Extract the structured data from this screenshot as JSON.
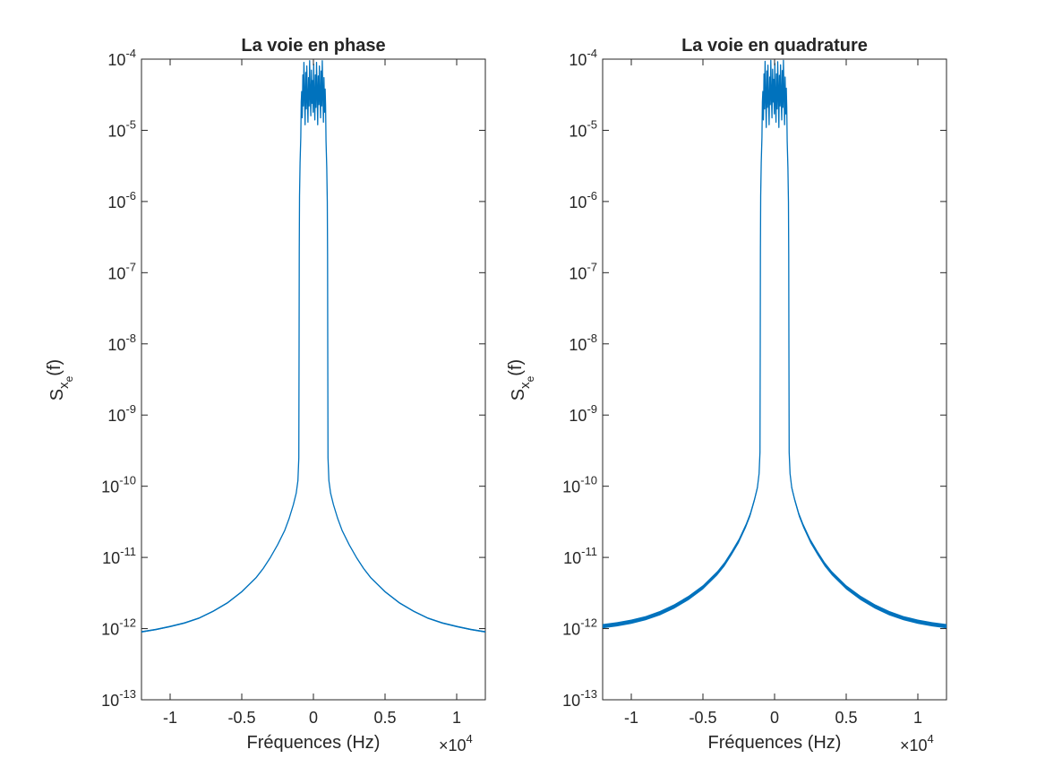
{
  "chart_data": [
    {
      "type": "line",
      "title": "La voie en phase",
      "xlabel": "Fréquences (Hz)",
      "ylabel": "S_{x_e}(f)",
      "ylabel_parts": {
        "main": "S",
        "sub1": "x",
        "sub2": "e",
        "arg": "(f)"
      },
      "x_multiplier": "×10",
      "x_multiplier_exp": "4",
      "xlim": [
        -12000,
        12000
      ],
      "ylim": [
        1e-13,
        0.0001
      ],
      "yscale": "log",
      "grid": false,
      "legend": "none",
      "color": "#0072BD",
      "xticks": [
        -10000,
        -5000,
        0,
        5000,
        10000
      ],
      "xtick_labels": [
        "-1",
        "-0.5",
        "0",
        "0.5",
        "1"
      ],
      "yticks": [
        1e-13,
        1e-12,
        1e-11,
        1e-10,
        1e-09,
        1e-08,
        1e-07,
        1e-06,
        1e-05,
        0.0001
      ],
      "ytick_base": "10",
      "ytick_exps": [
        "-13",
        "-12",
        "-11",
        "-10",
        "-9",
        "-8",
        "-7",
        "-6",
        "-5",
        "-4"
      ],
      "series": [
        {
          "band_width_decades": 0.02,
          "points": [
            [
              -12000,
              9e-13
            ],
            [
              -11000,
              9.7e-13
            ],
            [
              -10000,
              1.07e-12
            ],
            [
              -9000,
              1.2e-12
            ],
            [
              -8000,
              1.4e-12
            ],
            [
              -7000,
              1.75e-12
            ],
            [
              -6000,
              2.3e-12
            ],
            [
              -5000,
              3.3e-12
            ],
            [
              -4000,
              5.2e-12
            ],
            [
              -3500,
              7e-12
            ],
            [
              -3000,
              1e-11
            ],
            [
              -2500,
              1.5e-11
            ],
            [
              -2000,
              2.4e-11
            ],
            [
              -1700,
              3.5e-11
            ],
            [
              -1400,
              5.5e-11
            ],
            [
              -1200,
              8e-11
            ],
            [
              -1080,
              1.2e-10
            ],
            [
              -1020,
              2.5e-10
            ],
            [
              -1000,
              1e-08
            ],
            [
              -990,
              2e-07
            ],
            [
              -970,
              1.2e-06
            ],
            [
              -930,
              3.5e-06
            ],
            [
              -880,
              8e-06
            ],
            [
              -850,
              2.5e-05
            ],
            [
              -820,
              3.5e-05
            ],
            [
              -780,
              1.5e-05
            ],
            [
              -740,
              6e-05
            ],
            [
              -700,
              2.2e-05
            ],
            [
              -660,
              9e-05
            ],
            [
              -620,
              3e-05
            ],
            [
              -580,
              1.2e-05
            ],
            [
              -540,
              6.5e-05
            ],
            [
              -500,
              2e-05
            ],
            [
              -460,
              8e-05
            ],
            [
              -420,
              2.8e-05
            ],
            [
              -380,
              1.3e-05
            ],
            [
              -340,
              5.5e-05
            ],
            [
              -300,
              2.2e-05
            ],
            [
              -260,
              9.5e-05
            ],
            [
              -220,
              3e-05
            ],
            [
              -180,
              1.6e-05
            ],
            [
              -140,
              7e-05
            ],
            [
              -100,
              2.4e-05
            ],
            [
              -60,
              5e-05
            ],
            [
              -20,
              1.8e-05
            ],
            [
              20,
              8.5e-05
            ],
            [
              60,
              2.6e-05
            ],
            [
              100,
              1.4e-05
            ],
            [
              140,
              6e-05
            ],
            [
              180,
              2.1e-05
            ],
            [
              220,
              9e-05
            ],
            [
              260,
              3.2e-05
            ],
            [
              300,
              1.2e-05
            ],
            [
              340,
              5.8e-05
            ],
            [
              380,
              2.3e-05
            ],
            [
              420,
              8e-05
            ],
            [
              460,
              2.7e-05
            ],
            [
              500,
              1.5e-05
            ],
            [
              540,
              6.8e-05
            ],
            [
              580,
              2.2e-05
            ],
            [
              620,
              9.5e-05
            ],
            [
              660,
              3e-05
            ],
            [
              700,
              1.3e-05
            ],
            [
              740,
              5.5e-05
            ],
            [
              780,
              1.8e-05
            ],
            [
              820,
              3.8e-05
            ],
            [
              850,
              2.2e-05
            ],
            [
              880,
              7e-06
            ],
            [
              930,
              3e-06
            ],
            [
              970,
              1e-06
            ],
            [
              990,
              1.8e-07
            ],
            [
              1000,
              1e-08
            ],
            [
              1020,
              2.5e-10
            ],
            [
              1080,
              1.2e-10
            ],
            [
              1200,
              8e-11
            ],
            [
              1400,
              5.5e-11
            ],
            [
              1700,
              3.5e-11
            ],
            [
              2000,
              2.4e-11
            ],
            [
              2500,
              1.5e-11
            ],
            [
              3000,
              1e-11
            ],
            [
              3500,
              7e-12
            ],
            [
              4000,
              5.2e-12
            ],
            [
              5000,
              3.3e-12
            ],
            [
              6000,
              2.3e-12
            ],
            [
              7000,
              1.75e-12
            ],
            [
              8000,
              1.4e-12
            ],
            [
              9000,
              1.2e-12
            ],
            [
              10000,
              1.07e-12
            ],
            [
              11000,
              9.7e-13
            ],
            [
              12000,
              9e-13
            ]
          ]
        }
      ]
    },
    {
      "type": "line",
      "title": "La voie en quadrature",
      "xlabel": "Fréquences (Hz)",
      "ylabel": "S_{x_e}(f)",
      "ylabel_parts": {
        "main": "S",
        "sub1": "x",
        "sub2": "e",
        "arg": "(f)"
      },
      "x_multiplier": "×10",
      "x_multiplier_exp": "4",
      "xlim": [
        -12000,
        12000
      ],
      "ylim": [
        1e-13,
        0.0001
      ],
      "yscale": "log",
      "grid": false,
      "legend": "none",
      "color": "#0072BD",
      "xticks": [
        -10000,
        -5000,
        0,
        5000,
        10000
      ],
      "xtick_labels": [
        "-1",
        "-0.5",
        "0",
        "0.5",
        "1"
      ],
      "yticks": [
        1e-13,
        1e-12,
        1e-11,
        1e-10,
        1e-09,
        1e-08,
        1e-07,
        1e-06,
        1e-05,
        0.0001
      ],
      "ytick_base": "10",
      "ytick_exps": [
        "-13",
        "-12",
        "-11",
        "-10",
        "-9",
        "-8",
        "-7",
        "-6",
        "-5",
        "-4"
      ],
      "series": [
        {
          "band_width_decades": 0.06,
          "points": [
            [
              -12000,
              1.08e-12
            ],
            [
              -11000,
              1.15e-12
            ],
            [
              -10000,
              1.25e-12
            ],
            [
              -9000,
              1.4e-12
            ],
            [
              -8000,
              1.65e-12
            ],
            [
              -7000,
              2.05e-12
            ],
            [
              -6000,
              2.7e-12
            ],
            [
              -5000,
              3.8e-12
            ],
            [
              -4000,
              6e-12
            ],
            [
              -3500,
              8e-12
            ],
            [
              -3000,
              1.15e-11
            ],
            [
              -2500,
              1.7e-11
            ],
            [
              -2000,
              2.8e-11
            ],
            [
              -1700,
              4e-11
            ],
            [
              -1400,
              6.5e-11
            ],
            [
              -1200,
              9.5e-11
            ],
            [
              -1080,
              1.5e-10
            ],
            [
              -1020,
              3e-10
            ],
            [
              -1000,
              1e-08
            ],
            [
              -990,
              2e-07
            ],
            [
              -970,
              1.2e-06
            ],
            [
              -930,
              3.5e-06
            ],
            [
              -880,
              8e-06
            ],
            [
              -850,
              2.5e-05
            ],
            [
              -820,
              3.5e-05
            ],
            [
              -780,
              1.4e-05
            ],
            [
              -740,
              6.2e-05
            ],
            [
              -700,
              2e-05
            ],
            [
              -660,
              9.3e-05
            ],
            [
              -620,
              2.8e-05
            ],
            [
              -580,
              1.1e-05
            ],
            [
              -540,
              6.8e-05
            ],
            [
              -500,
              2.1e-05
            ],
            [
              -460,
              8.2e-05
            ],
            [
              -420,
              2.6e-05
            ],
            [
              -380,
              1.2e-05
            ],
            [
              -340,
              5.6e-05
            ],
            [
              -300,
              2.3e-05
            ],
            [
              -260,
              9.6e-05
            ],
            [
              -220,
              2.9e-05
            ],
            [
              -180,
              1.5e-05
            ],
            [
              -140,
              7.2e-05
            ],
            [
              -100,
              2.5e-05
            ],
            [
              -60,
              5.2e-05
            ],
            [
              -20,
              1.7e-05
            ],
            [
              20,
              8.7e-05
            ],
            [
              60,
              2.5e-05
            ],
            [
              100,
              1.3e-05
            ],
            [
              140,
              6.2e-05
            ],
            [
              180,
              2e-05
            ],
            [
              220,
              9.2e-05
            ],
            [
              260,
              3.1e-05
            ],
            [
              300,
              1.1e-05
            ],
            [
              340,
              5.9e-05
            ],
            [
              380,
              2.2e-05
            ],
            [
              420,
              8.3e-05
            ],
            [
              460,
              2.6e-05
            ],
            [
              500,
              1.4e-05
            ],
            [
              540,
              6.9e-05
            ],
            [
              580,
              2.1e-05
            ],
            [
              620,
              9.6e-05
            ],
            [
              660,
              2.9e-05
            ],
            [
              700,
              1.2e-05
            ],
            [
              740,
              5.6e-05
            ],
            [
              780,
              1.7e-05
            ],
            [
              820,
              3.9e-05
            ],
            [
              850,
              2.1e-05
            ],
            [
              880,
              7e-06
            ],
            [
              930,
              3e-06
            ],
            [
              970,
              1e-06
            ],
            [
              990,
              1.8e-07
            ],
            [
              1000,
              1e-08
            ],
            [
              1020,
              3e-10
            ],
            [
              1080,
              1.5e-10
            ],
            [
              1200,
              9.5e-11
            ],
            [
              1400,
              6.5e-11
            ],
            [
              1700,
              4e-11
            ],
            [
              2000,
              2.8e-11
            ],
            [
              2500,
              1.7e-11
            ],
            [
              3000,
              1.15e-11
            ],
            [
              3500,
              8e-12
            ],
            [
              4000,
              6e-12
            ],
            [
              5000,
              3.8e-12
            ],
            [
              6000,
              2.7e-12
            ],
            [
              7000,
              2.05e-12
            ],
            [
              8000,
              1.65e-12
            ],
            [
              9000,
              1.4e-12
            ],
            [
              10000,
              1.25e-12
            ],
            [
              11000,
              1.15e-12
            ],
            [
              12000,
              1.08e-12
            ]
          ]
        }
      ]
    }
  ]
}
